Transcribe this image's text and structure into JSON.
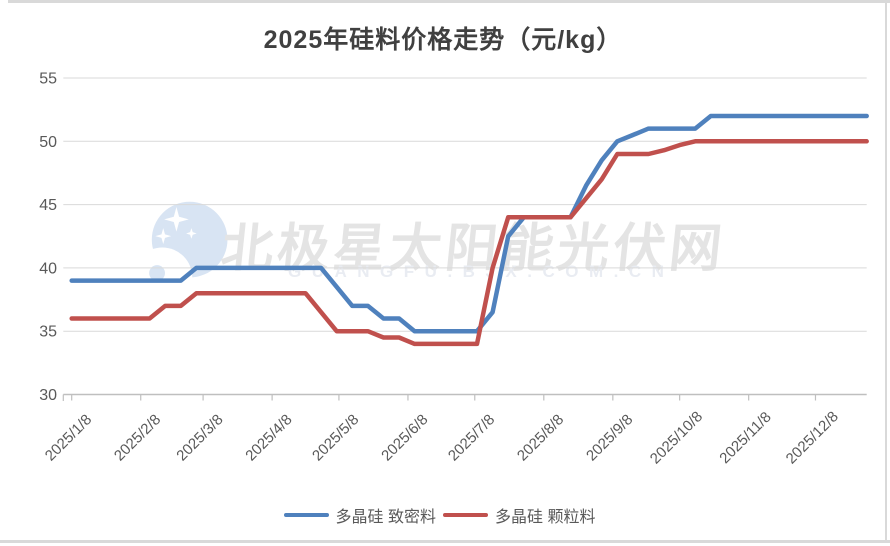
{
  "chart_data": {
    "type": "line",
    "title": "2025年硅料价格走势（元/kg）",
    "xlabel": "",
    "ylabel": "",
    "ylim": [
      30,
      55
    ],
    "yticks": [
      30,
      35,
      40,
      45,
      50,
      55
    ],
    "grid": true,
    "legend_position": "bottom",
    "x_unit": "weekly",
    "x_tick_labels": [
      "2025/1/8",
      "2025/2/8",
      "2025/3/8",
      "2025/4/8",
      "2025/5/8",
      "2025/6/8",
      "2025/7/8",
      "2025/8/8",
      "2025/9/8",
      "2025/10/8",
      "2025/11/8",
      "2025/12/8"
    ],
    "x": [
      "2025/1/8",
      "2025/1/15",
      "2025/1/22",
      "2025/1/29",
      "2025/2/5",
      "2025/2/12",
      "2025/2/19",
      "2025/2/26",
      "2025/3/5",
      "2025/3/12",
      "2025/3/19",
      "2025/3/26",
      "2025/4/2",
      "2025/4/9",
      "2025/4/16",
      "2025/4/23",
      "2025/4/30",
      "2025/5/7",
      "2025/5/14",
      "2025/5/21",
      "2025/5/28",
      "2025/6/4",
      "2025/6/11",
      "2025/6/18",
      "2025/6/25",
      "2025/7/2",
      "2025/7/9",
      "2025/7/16",
      "2025/7/23",
      "2025/7/30",
      "2025/8/6",
      "2025/8/13",
      "2025/8/20",
      "2025/8/27",
      "2025/9/3",
      "2025/9/10",
      "2025/9/17",
      "2025/9/24",
      "2025/10/1",
      "2025/10/8",
      "2025/10/15",
      "2025/10/22",
      "2025/10/29",
      "2025/11/5",
      "2025/11/12",
      "2025/11/19",
      "2025/11/26",
      "2025/12/3",
      "2025/12/10",
      "2025/12/17",
      "2025/12/24",
      "2025/12/31"
    ],
    "series": [
      {
        "name": "多晶硅 致密料",
        "color": "#4f81bd",
        "values": [
          39,
          39,
          39,
          39,
          39,
          39,
          39,
          39,
          40,
          40,
          40,
          40,
          40,
          40,
          40,
          40,
          40,
          38.5,
          37,
          37,
          36,
          36,
          35,
          35,
          35,
          35,
          35,
          36.5,
          42.5,
          44,
          44,
          44,
          44,
          46.5,
          48.5,
          50,
          50.5,
          51,
          51,
          51,
          51,
          52,
          52,
          52,
          52,
          52,
          52,
          52,
          52,
          52,
          52,
          52
        ]
      },
      {
        "name": "多晶硅 颗粒料",
        "color": "#c0504d",
        "values": [
          36,
          36,
          36,
          36,
          36,
          36,
          37,
          37,
          38,
          38,
          38,
          38,
          38,
          38,
          38,
          38,
          36.5,
          35,
          35,
          35,
          34.5,
          34.5,
          34,
          34,
          34,
          34,
          34,
          40,
          44,
          44,
          44,
          44,
          44,
          45.5,
          47,
          49,
          49,
          49,
          49.3,
          49.7,
          50,
          50,
          50,
          50,
          50,
          50,
          50,
          50,
          50,
          50,
          50,
          50
        ]
      }
    ],
    "colors": {
      "title": "#404040",
      "tick_labels": "#595959",
      "gridlines": "#d9d9d9",
      "axis": "#bfbfbf"
    }
  },
  "watermark": {
    "line1": "北极星太阳能光伏网",
    "line2": "GUANGFU.BJX.COM.CN",
    "logo": "moon-stars-logo"
  }
}
